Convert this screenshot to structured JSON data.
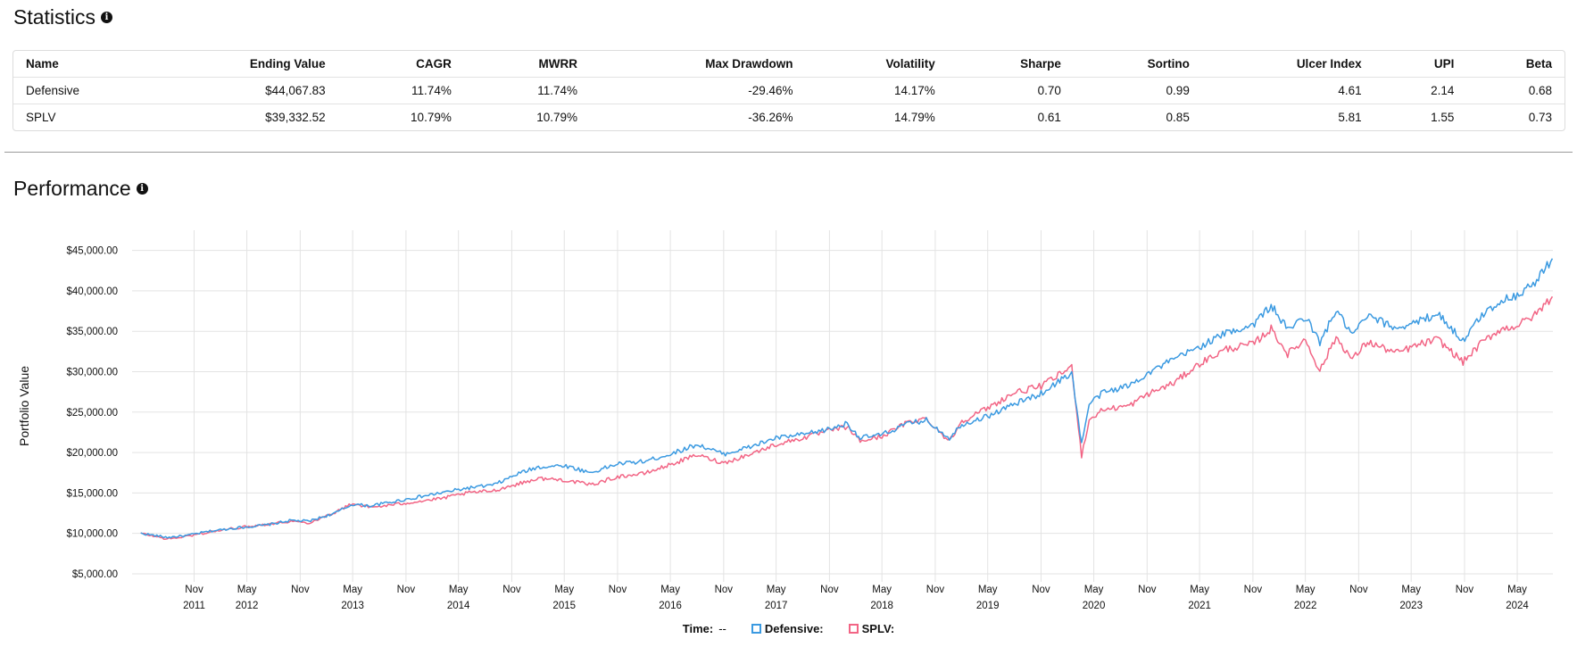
{
  "statistics": {
    "title": "Statistics",
    "columns": [
      "Name",
      "Ending Value",
      "CAGR",
      "MWRR",
      "Max Drawdown",
      "Volatility",
      "Sharpe",
      "Sortino",
      "Ulcer Index",
      "UPI",
      "Beta"
    ],
    "rows": [
      [
        "Defensive",
        "$44,067.83",
        "11.74%",
        "11.74%",
        "-29.46%",
        "14.17%",
        "0.70",
        "0.99",
        "4.61",
        "2.14",
        "0.68"
      ],
      [
        "SPLV",
        "$39,332.52",
        "10.79%",
        "10.79%",
        "-36.26%",
        "14.79%",
        "0.61",
        "0.85",
        "5.81",
        "1.55",
        "0.73"
      ]
    ]
  },
  "performance": {
    "title": "Performance"
  },
  "legend": {
    "time_label": "Time:",
    "time_value": "--",
    "defensive_label": "Defensive:",
    "splv_label": "SPLV:"
  },
  "colors": {
    "defensive": "#3b9ae1",
    "splv": "#f26585",
    "grid": "#e3e3e3"
  },
  "chart_data": {
    "type": "line",
    "ylabel": "Portfolio Value",
    "xlabel": "",
    "ylim": [
      4000,
      47500
    ],
    "yticks": [
      5000,
      10000,
      15000,
      20000,
      25000,
      30000,
      35000,
      40000,
      45000
    ],
    "ytick_labels": [
      "$5,000.00",
      "$10,000.00",
      "$15,000.00",
      "$20,000.00",
      "$25,000.00",
      "$30,000.00",
      "$35,000.00",
      "$40,000.00",
      "$45,000.00"
    ],
    "xlim": [
      "2011-04-01",
      "2024-09-01"
    ],
    "xticks": [
      {
        "date": "2011-11-01",
        "label": "Nov",
        "year": "2011"
      },
      {
        "date": "2012-05-01",
        "label": "May",
        "year": "2012"
      },
      {
        "date": "2012-11-01",
        "label": "Nov",
        "year": ""
      },
      {
        "date": "2013-05-01",
        "label": "May",
        "year": "2013"
      },
      {
        "date": "2013-11-01",
        "label": "Nov",
        "year": ""
      },
      {
        "date": "2014-05-01",
        "label": "May",
        "year": "2014"
      },
      {
        "date": "2014-11-01",
        "label": "Nov",
        "year": ""
      },
      {
        "date": "2015-05-01",
        "label": "May",
        "year": "2015"
      },
      {
        "date": "2015-11-01",
        "label": "Nov",
        "year": ""
      },
      {
        "date": "2016-05-01",
        "label": "May",
        "year": "2016"
      },
      {
        "date": "2016-11-01",
        "label": "Nov",
        "year": ""
      },
      {
        "date": "2017-05-01",
        "label": "May",
        "year": "2017"
      },
      {
        "date": "2017-11-01",
        "label": "Nov",
        "year": ""
      },
      {
        "date": "2018-05-01",
        "label": "May",
        "year": "2018"
      },
      {
        "date": "2018-11-01",
        "label": "Nov",
        "year": ""
      },
      {
        "date": "2019-05-01",
        "label": "May",
        "year": "2019"
      },
      {
        "date": "2019-11-01",
        "label": "Nov",
        "year": ""
      },
      {
        "date": "2020-05-01",
        "label": "May",
        "year": "2020"
      },
      {
        "date": "2020-11-01",
        "label": "Nov",
        "year": ""
      },
      {
        "date": "2021-05-01",
        "label": "May",
        "year": "2021"
      },
      {
        "date": "2021-11-01",
        "label": "Nov",
        "year": ""
      },
      {
        "date": "2022-05-01",
        "label": "May",
        "year": "2022"
      },
      {
        "date": "2022-11-01",
        "label": "Nov",
        "year": ""
      },
      {
        "date": "2023-05-01",
        "label": "May",
        "year": "2023"
      },
      {
        "date": "2023-11-01",
        "label": "Nov",
        "year": ""
      },
      {
        "date": "2024-05-01",
        "label": "May",
        "year": "2024"
      }
    ],
    "grid": true,
    "legend_position": "bottom-center",
    "series": [
      {
        "name": "Defensive",
        "points": [
          [
            "2011-05-01",
            10000
          ],
          [
            "2011-08-01",
            9500
          ],
          [
            "2011-10-01",
            9700
          ],
          [
            "2012-01-01",
            10300
          ],
          [
            "2012-04-01",
            10700
          ],
          [
            "2012-07-01",
            11000
          ],
          [
            "2012-10-01",
            11600
          ],
          [
            "2012-12-01",
            11500
          ],
          [
            "2013-03-01",
            12500
          ],
          [
            "2013-05-01",
            13600
          ],
          [
            "2013-07-01",
            13400
          ],
          [
            "2013-10-01",
            14000
          ],
          [
            "2013-12-01",
            14400
          ],
          [
            "2014-03-01",
            15000
          ],
          [
            "2014-06-01",
            15600
          ],
          [
            "2014-09-01",
            16000
          ],
          [
            "2014-12-01",
            17500
          ],
          [
            "2015-02-01",
            18200
          ],
          [
            "2015-05-01",
            18400
          ],
          [
            "2015-08-01",
            17500
          ],
          [
            "2015-11-01",
            18600
          ],
          [
            "2016-02-01",
            18900
          ],
          [
            "2016-05-01",
            19800
          ],
          [
            "2016-08-01",
            21000
          ],
          [
            "2016-11-01",
            19800
          ],
          [
            "2017-02-01",
            20700
          ],
          [
            "2017-05-01",
            21800
          ],
          [
            "2017-08-01",
            22200
          ],
          [
            "2017-11-01",
            22900
          ],
          [
            "2018-01-01",
            23600
          ],
          [
            "2018-02-15",
            21800
          ],
          [
            "2018-05-01",
            22200
          ],
          [
            "2018-08-01",
            23600
          ],
          [
            "2018-10-01",
            24000
          ],
          [
            "2018-12-20",
            21800
          ],
          [
            "2019-02-01",
            23500
          ],
          [
            "2019-05-01",
            24500
          ],
          [
            "2019-08-01",
            26000
          ],
          [
            "2019-11-01",
            27300
          ],
          [
            "2020-02-15",
            29900
          ],
          [
            "2020-03-20",
            21000
          ],
          [
            "2020-04-15",
            26000
          ],
          [
            "2020-06-01",
            27400
          ],
          [
            "2020-09-01",
            28300
          ],
          [
            "2020-11-01",
            29800
          ],
          [
            "2021-02-01",
            31500
          ],
          [
            "2021-05-01",
            33100
          ],
          [
            "2021-08-01",
            34800
          ],
          [
            "2021-11-01",
            35800
          ],
          [
            "2022-01-03",
            38200
          ],
          [
            "2022-03-01",
            35200
          ],
          [
            "2022-05-01",
            36800
          ],
          [
            "2022-06-20",
            33600
          ],
          [
            "2022-08-15",
            37600
          ],
          [
            "2022-10-10",
            34500
          ],
          [
            "2022-12-01",
            36900
          ],
          [
            "2023-03-10",
            35400
          ],
          [
            "2023-06-01",
            36300
          ],
          [
            "2023-08-01",
            37200
          ],
          [
            "2023-10-27",
            33800
          ],
          [
            "2023-12-31",
            37000
          ],
          [
            "2024-03-01",
            38700
          ],
          [
            "2024-05-01",
            39500
          ],
          [
            "2024-07-01",
            41000
          ],
          [
            "2024-08-30",
            44000
          ]
        ]
      },
      {
        "name": "SPLV",
        "points": [
          [
            "2011-05-01",
            10000
          ],
          [
            "2011-08-01",
            9300
          ],
          [
            "2011-10-01",
            9600
          ],
          [
            "2012-01-01",
            10200
          ],
          [
            "2012-04-01",
            10700
          ],
          [
            "2012-07-01",
            11100
          ],
          [
            "2012-10-01",
            11500
          ],
          [
            "2012-12-01",
            11300
          ],
          [
            "2013-03-01",
            12600
          ],
          [
            "2013-05-01",
            13700
          ],
          [
            "2013-07-01",
            13200
          ],
          [
            "2013-10-01",
            13600
          ],
          [
            "2013-12-01",
            13900
          ],
          [
            "2014-03-01",
            14300
          ],
          [
            "2014-06-01",
            15000
          ],
          [
            "2014-09-01",
            15300
          ],
          [
            "2014-12-01",
            16200
          ],
          [
            "2015-02-01",
            16800
          ],
          [
            "2015-05-01",
            16600
          ],
          [
            "2015-08-01",
            16000
          ],
          [
            "2015-11-01",
            17000
          ],
          [
            "2016-02-01",
            17400
          ],
          [
            "2016-05-01",
            18500
          ],
          [
            "2016-08-01",
            19700
          ],
          [
            "2016-11-01",
            18700
          ],
          [
            "2017-02-01",
            19800
          ],
          [
            "2017-05-01",
            21000
          ],
          [
            "2017-08-01",
            21800
          ],
          [
            "2017-11-01",
            22700
          ],
          [
            "2018-01-01",
            23200
          ],
          [
            "2018-02-15",
            21400
          ],
          [
            "2018-05-01",
            22000
          ],
          [
            "2018-08-01",
            23800
          ],
          [
            "2018-10-01",
            24200
          ],
          [
            "2018-12-20",
            21400
          ],
          [
            "2019-02-01",
            23900
          ],
          [
            "2019-05-01",
            25500
          ],
          [
            "2019-08-01",
            27400
          ],
          [
            "2019-11-01",
            28200
          ],
          [
            "2020-02-15",
            30600
          ],
          [
            "2020-03-20",
            19600
          ],
          [
            "2020-04-15",
            24000
          ],
          [
            "2020-06-01",
            25300
          ],
          [
            "2020-09-01",
            25800
          ],
          [
            "2020-11-01",
            27200
          ],
          [
            "2021-02-01",
            28600
          ],
          [
            "2021-05-01",
            31000
          ],
          [
            "2021-08-01",
            32800
          ],
          [
            "2021-11-01",
            33400
          ],
          [
            "2022-01-03",
            35300
          ],
          [
            "2022-03-01",
            32200
          ],
          [
            "2022-05-01",
            34000
          ],
          [
            "2022-06-20",
            30100
          ],
          [
            "2022-08-15",
            34300
          ],
          [
            "2022-10-10",
            31500
          ],
          [
            "2022-12-01",
            33700
          ],
          [
            "2023-03-10",
            32300
          ],
          [
            "2023-06-01",
            33400
          ],
          [
            "2023-08-01",
            34000
          ],
          [
            "2023-10-27",
            31200
          ],
          [
            "2023-12-31",
            33600
          ],
          [
            "2024-03-01",
            35200
          ],
          [
            "2024-05-01",
            35700
          ],
          [
            "2024-07-01",
            37000
          ],
          [
            "2024-08-30",
            39300
          ]
        ]
      }
    ]
  }
}
